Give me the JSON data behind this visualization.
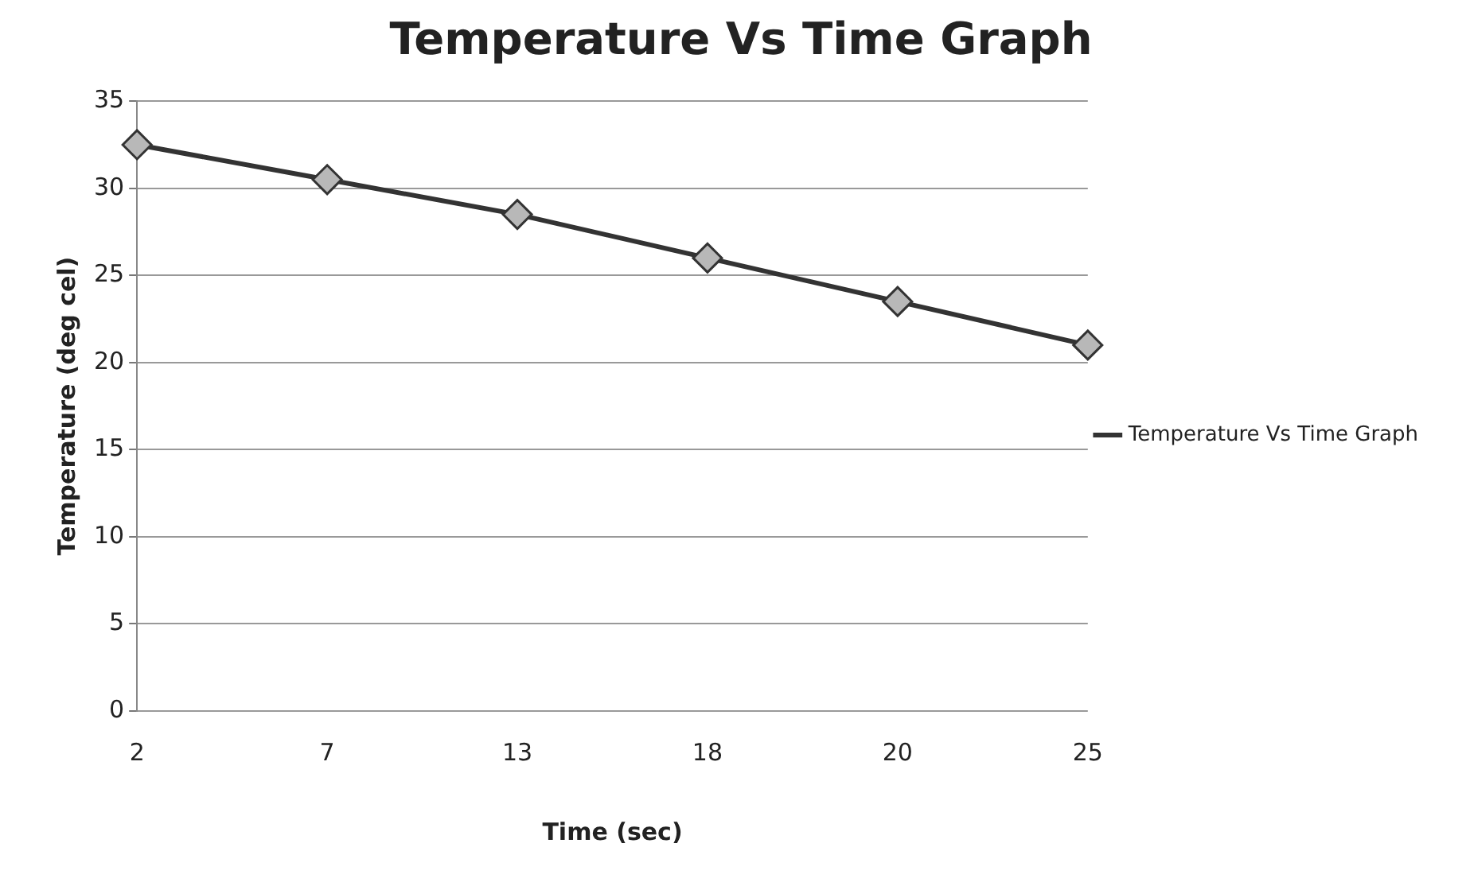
{
  "chart_data": {
    "type": "line",
    "title": "Temperature Vs Time Graph",
    "xlabel": "Time (sec)",
    "ylabel": "Temperature (deg cel)",
    "categories": [
      "2",
      "7",
      "13",
      "18",
      "20",
      "25"
    ],
    "series": [
      {
        "name": "Temperature Vs Time Graph",
        "color": "#333333",
        "values": [
          32.5,
          30.5,
          28.5,
          26,
          23.5,
          21
        ]
      }
    ],
    "ylim": [
      0,
      35
    ],
    "yticks": [
      0,
      5,
      10,
      15,
      20,
      25,
      30,
      35
    ],
    "grid": "y",
    "legend": "right",
    "marker": "diamond",
    "line_style": "solid"
  }
}
